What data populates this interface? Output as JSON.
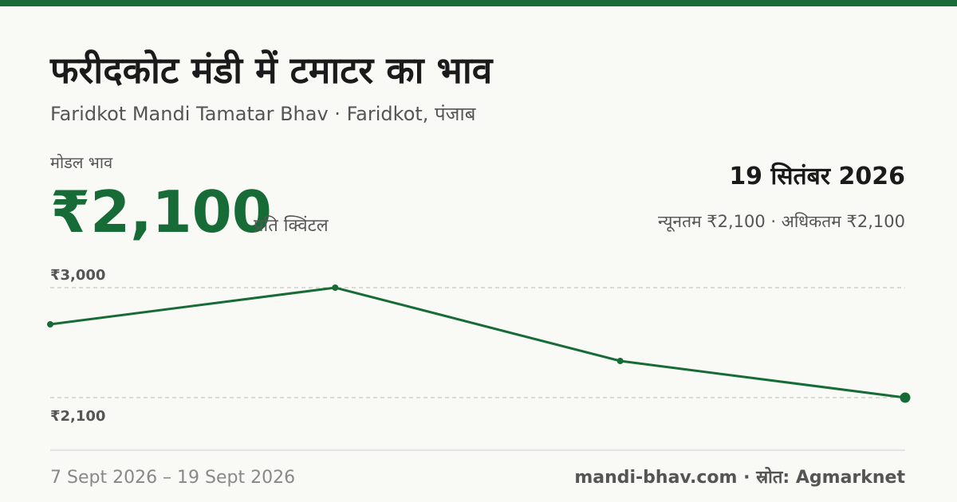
{
  "header": {
    "title": "फरीदकोट मंडी में टमाटर का भाव",
    "subtitle": "Faridkot Mandi Tamatar Bhav · Faridkot, पंजाब"
  },
  "summary": {
    "label": "मोडल भाव",
    "price": "₹2,100",
    "unit": "प्रति क्विंटल",
    "date": "19 सितंबर 2026",
    "range": "न्यूनतम ₹2,100 · अधिकतम ₹2,100"
  },
  "chart_data": {
    "type": "line",
    "values": [
      2700,
      3000,
      2400,
      2100
    ],
    "color": "#176b37",
    "ylim": [
      2100,
      3000
    ],
    "yticks": [
      {
        "value": 2100,
        "label": "₹2,100"
      },
      {
        "value": 3000,
        "label": "₹3,000"
      }
    ],
    "grid": true
  },
  "footer": {
    "period": "7 Sept 2026 – 19 Sept 2026",
    "source": "mandi-bhav.com · स्रोत: Agmarknet"
  }
}
